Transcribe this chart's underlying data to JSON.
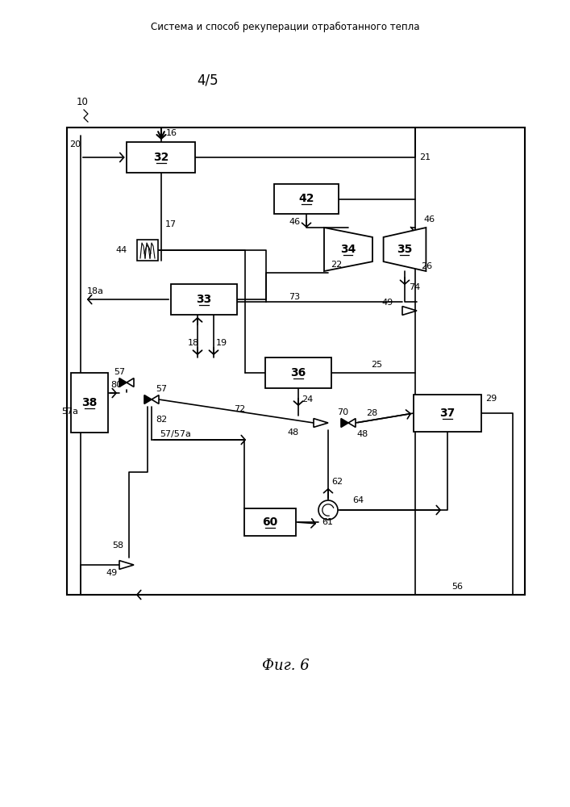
{
  "title": "Система и способ рекуперации отработанного тепла",
  "fig_label": "4/5",
  "fig_caption": "Фиг. 6",
  "bg_color": "#ffffff"
}
